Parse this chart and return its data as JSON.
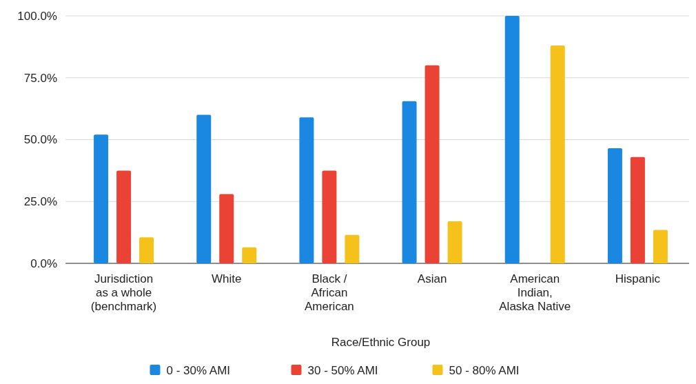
{
  "chart_data": {
    "type": "bar",
    "xlabel": "Race/Ethnic Group",
    "categories": [
      "Jurisdiction as a whole (benchmark)",
      "White",
      "Black / African American",
      "Asian",
      "American Indian, Alaska Native",
      "Hispanic"
    ],
    "series": [
      {
        "name": "0 - 30% AMI",
        "color": "#1a87e0",
        "values": [
          52,
          60,
          59,
          65.5,
          100,
          46.5
        ]
      },
      {
        "name": "30 - 50% AMI",
        "color": "#ea4335",
        "values": [
          37.5,
          28,
          37.5,
          80,
          0,
          43
        ]
      },
      {
        "name": "50 - 80% AMI",
        "color": "#f5c21b",
        "values": [
          10.5,
          6.5,
          11.5,
          17,
          88,
          13.5
        ]
      }
    ],
    "ylim": [
      0,
      100
    ],
    "yticks": [
      {
        "value": 0,
        "label": "0.0%"
      },
      {
        "value": 25,
        "label": "25.0%"
      },
      {
        "value": 50,
        "label": "50.0%"
      },
      {
        "value": 75,
        "label": "75.0%"
      },
      {
        "value": 100,
        "label": "100.0%"
      }
    ],
    "grid": "y",
    "legend": "bottom"
  }
}
